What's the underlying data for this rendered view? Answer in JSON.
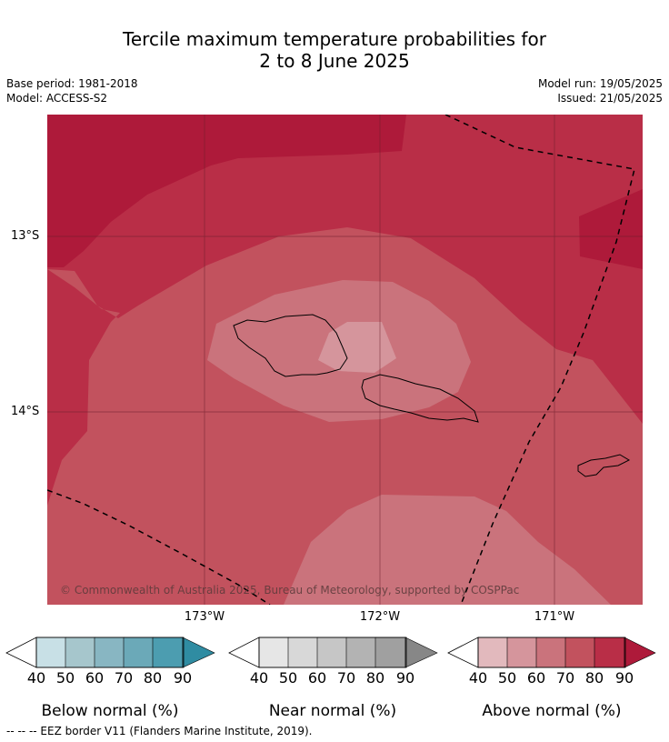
{
  "title_line1": "Tercile maximum temperature probabilities for",
  "title_line2": "2 to 8 June 2025",
  "base_period": "Base period: 1981-2018",
  "model": "Model: ACCESS-S2",
  "model_run": "Model run: 19/05/2025",
  "issued": "Issued: 21/05/2025",
  "credit": "© Commonwealth of Australia 2025, Bureau of Meteorology, supported by COSPPac",
  "lat_labels": [
    "13°S",
    "14°S"
  ],
  "lon_labels": [
    "173°W",
    "172°W",
    "171°W"
  ],
  "colors": {
    "above": [
      "#e2b9bd",
      "#d5959c",
      "#ca737c",
      "#c2525e",
      "#b92e47",
      "#ae1a3a"
    ],
    "near": [
      "#e6e6e6",
      "#d8d8d8",
      "#c6c6c6",
      "#b3b3b3",
      "#a0a0a0",
      "#878787"
    ],
    "below": [
      "#c8e0e6",
      "#a6c6cc",
      "#88b6c2",
      "#6ba9b8",
      "#4c9db0",
      "#2f8ca2"
    ]
  },
  "legends": {
    "below": {
      "label": "Below normal (%)",
      "ticks": [
        "40",
        "50",
        "60",
        "70",
        "80",
        "90"
      ]
    },
    "near": {
      "label": "Near normal (%)",
      "ticks": [
        "40",
        "50",
        "60",
        "70",
        "80",
        "90"
      ]
    },
    "above": {
      "label": "Above normal (%)",
      "ticks": [
        "40",
        "50",
        "60",
        "70",
        "80",
        "90"
      ]
    }
  },
  "footer": "--  --  -- EEZ border V11 (Flanders Marine Institute, 2019)."
}
